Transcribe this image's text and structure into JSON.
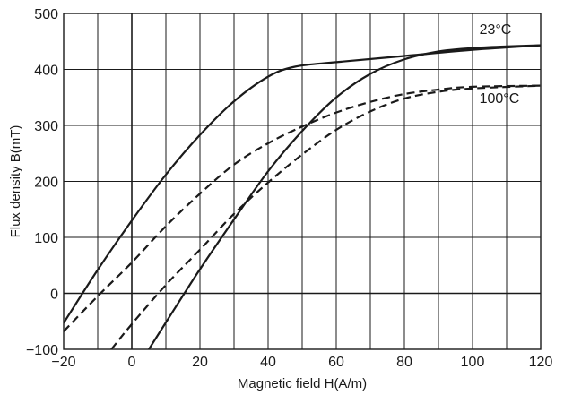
{
  "chart_data": {
    "type": "line",
    "title": "",
    "xlabel": "Magnetic field H(A/m)",
    "ylabel": "Flux density B(mT)",
    "xlim": [
      -20,
      120
    ],
    "ylim": [
      -100,
      500
    ],
    "x_ticks": [
      "−20",
      "0",
      "20",
      "40",
      "60",
      "80",
      "100",
      "120"
    ],
    "y_ticks": [
      "−100",
      "0",
      "100",
      "200",
      "300",
      "400",
      "500"
    ],
    "x_tick_values": [
      -20,
      0,
      20,
      40,
      60,
      80,
      100,
      120
    ],
    "y_tick_values": [
      -100,
      0,
      100,
      200,
      300,
      400,
      500
    ],
    "x_grid_values": [
      -20,
      -10,
      0,
      10,
      20,
      30,
      40,
      50,
      60,
      70,
      80,
      90,
      100,
      110,
      120
    ],
    "y_grid_values": [
      -100,
      0,
      100,
      200,
      300,
      400,
      500
    ],
    "grid": true,
    "series": [
      {
        "name": "23°C",
        "style": "solid",
        "color": "#1a1a1a",
        "branches": [
          {
            "part": "upper",
            "points": [
              [
                -20,
                -53
              ],
              [
                -10,
                42
              ],
              [
                0,
                130
              ],
              [
                10,
                212
              ],
              [
                20,
                283
              ],
              [
                30,
                343
              ],
              [
                40,
                387
              ],
              [
                48,
                405
              ],
              [
                60,
                413
              ],
              [
                80,
                424
              ],
              [
                100,
                435
              ],
              [
                120,
                443
              ]
            ]
          },
          {
            "part": "lower",
            "points": [
              [
                5,
                -100
              ],
              [
                10,
                -52
              ],
              [
                20,
                43
              ],
              [
                30,
                132
              ],
              [
                40,
                218
              ],
              [
                50,
                290
              ],
              [
                60,
                350
              ],
              [
                70,
                392
              ],
              [
                80,
                418
              ],
              [
                90,
                432
              ],
              [
                100,
                438
              ],
              [
                110,
                441
              ],
              [
                120,
                443
              ]
            ]
          }
        ]
      },
      {
        "name": "100°C",
        "style": "dashed",
        "color": "#1a1a1a",
        "branches": [
          {
            "part": "upper",
            "points": [
              [
                -20,
                -68
              ],
              [
                -10,
                -5
              ],
              [
                0,
                55
              ],
              [
                10,
                120
              ],
              [
                20,
                178
              ],
              [
                30,
                230
              ],
              [
                40,
                268
              ],
              [
                50,
                298
              ],
              [
                60,
                323
              ],
              [
                70,
                342
              ],
              [
                80,
                356
              ],
              [
                90,
                364
              ],
              [
                100,
                369
              ],
              [
                120,
                371
              ]
            ]
          },
          {
            "part": "lower",
            "points": [
              [
                -6,
                -100
              ],
              [
                0,
                -55
              ],
              [
                10,
                15
              ],
              [
                20,
                78
              ],
              [
                30,
                142
              ],
              [
                40,
                198
              ],
              [
                50,
                248
              ],
              [
                60,
                292
              ],
              [
                70,
                325
              ],
              [
                80,
                348
              ],
              [
                90,
                360
              ],
              [
                100,
                366
              ],
              [
                120,
                371
              ]
            ]
          }
        ]
      }
    ],
    "annotations": [
      {
        "text": "23°C",
        "series": "23°C",
        "at": [
          102,
          463
        ]
      },
      {
        "text": "100°C",
        "series": "100°C",
        "at": [
          102,
          340
        ]
      }
    ]
  }
}
